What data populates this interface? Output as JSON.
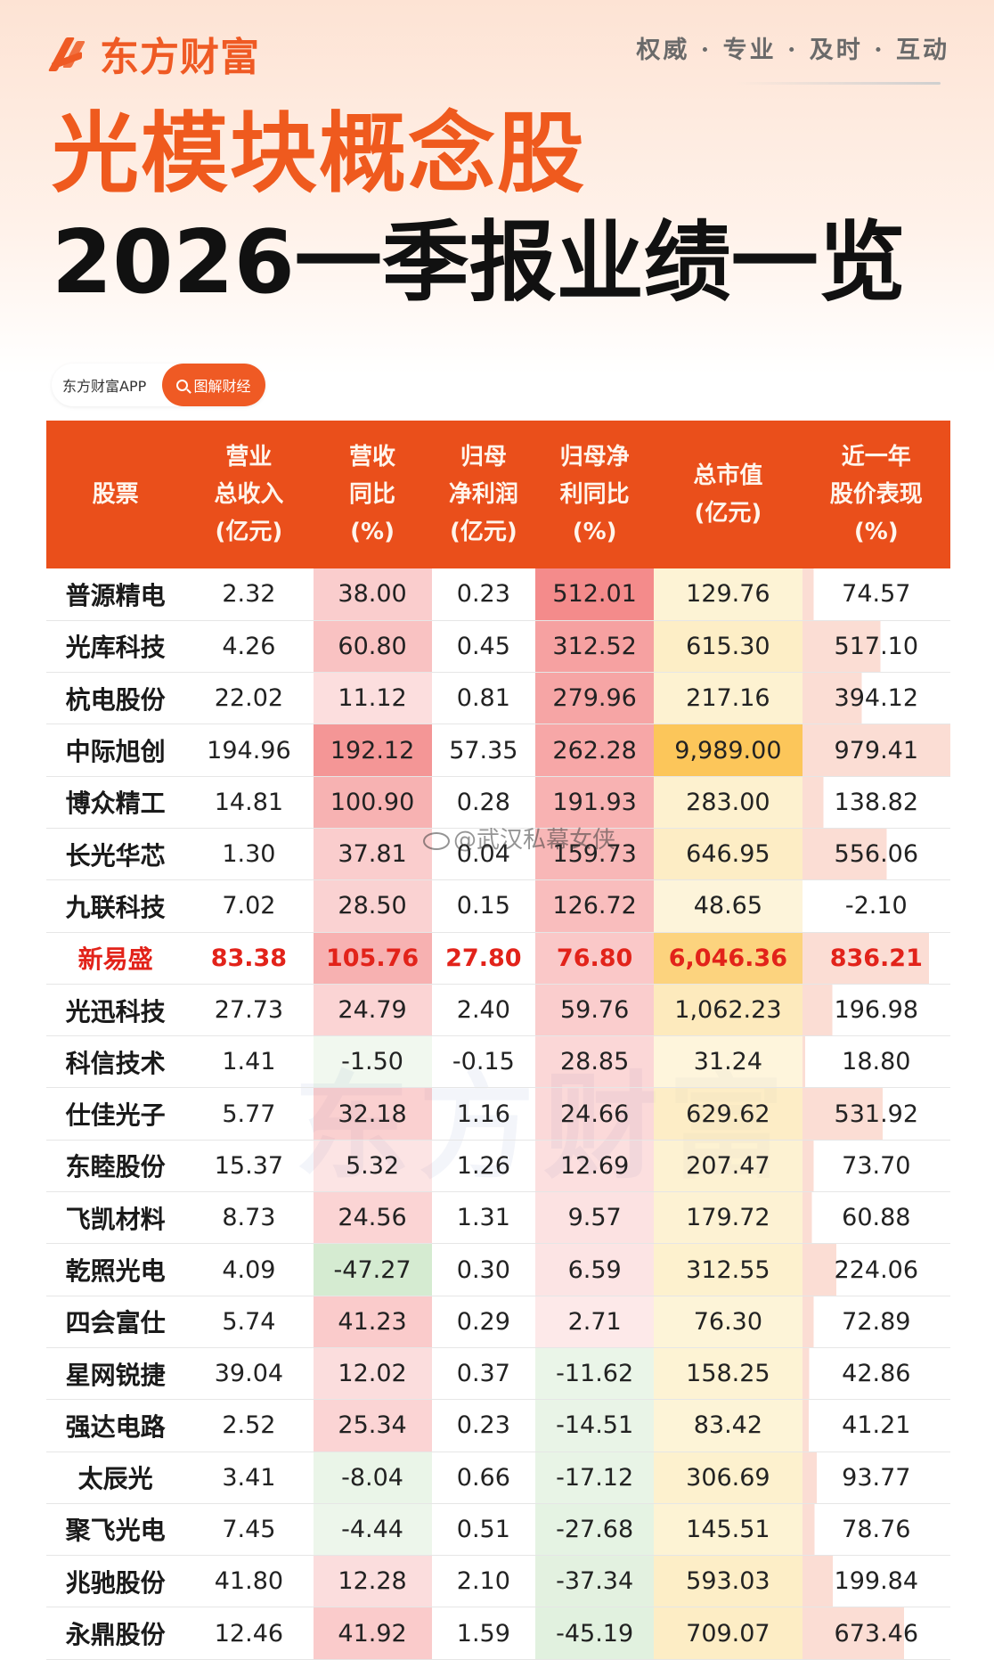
{
  "brand": {
    "name": "东方财富",
    "motto": "权威 · 专业 · 及时 · 互动"
  },
  "title": {
    "line1": "光模块概念股",
    "line2": "2026一季报业绩一览"
  },
  "badge": {
    "left": "东方财富APP",
    "right": "图解财经"
  },
  "watermark": "@武汉私幕女侠",
  "background_mark": "东方财富",
  "colors": {
    "brand": "#ef5a24",
    "header": "#ea4f1b",
    "highlight": "#e2231a"
  },
  "table": {
    "headers": [
      [
        "股票"
      ],
      [
        "营业",
        "总收入",
        "(亿元)"
      ],
      [
        "营收",
        "同比",
        "(%)"
      ],
      [
        "归母",
        "净利润",
        "(亿元)"
      ],
      [
        "归母净",
        "利同比",
        "(%)"
      ],
      [
        "总市值",
        "(亿元)"
      ],
      [
        "近一年",
        "股价表现",
        "(%)"
      ]
    ],
    "rows": [
      [
        "普源精电",
        "2.32",
        "38.00",
        "0.23",
        "512.01",
        "129.76",
        "74.57"
      ],
      [
        "光库科技",
        "4.26",
        "60.80",
        "0.45",
        "312.52",
        "615.30",
        "517.10"
      ],
      [
        "杭电股份",
        "22.02",
        "11.12",
        "0.81",
        "279.96",
        "217.16",
        "394.12"
      ],
      [
        "中际旭创",
        "194.96",
        "192.12",
        "57.35",
        "262.28",
        "9,989.00",
        "979.41"
      ],
      [
        "博众精工",
        "14.81",
        "100.90",
        "0.28",
        "191.93",
        "283.00",
        "138.82"
      ],
      [
        "长光华芯",
        "1.30",
        "37.81",
        "0.04",
        "159.73",
        "646.95",
        "556.06"
      ],
      [
        "九联科技",
        "7.02",
        "28.50",
        "0.15",
        "126.72",
        "48.65",
        "-2.10"
      ],
      [
        "新易盛",
        "83.38",
        "105.76",
        "27.80",
        "76.80",
        "6,046.36",
        "836.21"
      ],
      [
        "光迅科技",
        "27.73",
        "24.79",
        "2.40",
        "59.76",
        "1,062.23",
        "196.98"
      ],
      [
        "科信技术",
        "1.41",
        "-1.50",
        "-0.15",
        "28.85",
        "31.24",
        "18.80"
      ],
      [
        "仕佳光子",
        "5.77",
        "32.18",
        "1.16",
        "24.66",
        "629.62",
        "531.92"
      ],
      [
        "东睦股份",
        "15.37",
        "5.32",
        "1.26",
        "12.69",
        "207.47",
        "73.70"
      ],
      [
        "飞凯材料",
        "8.73",
        "24.56",
        "1.31",
        "9.57",
        "179.72",
        "60.88"
      ],
      [
        "乾照光电",
        "4.09",
        "-47.27",
        "0.30",
        "6.59",
        "312.55",
        "224.06"
      ],
      [
        "四会富仕",
        "5.74",
        "41.23",
        "0.29",
        "2.71",
        "76.30",
        "72.89"
      ],
      [
        "星网锐捷",
        "39.04",
        "12.02",
        "0.37",
        "-11.62",
        "158.25",
        "42.86"
      ],
      [
        "强达电路",
        "2.52",
        "25.34",
        "0.23",
        "-14.51",
        "83.42",
        "41.21"
      ],
      [
        "太辰光",
        "3.41",
        "-8.04",
        "0.66",
        "-17.12",
        "306.69",
        "93.77"
      ],
      [
        "聚飞光电",
        "7.45",
        "-4.44",
        "0.51",
        "-27.68",
        "145.51",
        "78.76"
      ],
      [
        "兆驰股份",
        "41.80",
        "12.28",
        "2.10",
        "-37.34",
        "593.03",
        "199.84"
      ],
      [
        "永鼎股份",
        "12.46",
        "41.92",
        "1.59",
        "-45.19",
        "709.07",
        "673.46"
      ]
    ],
    "highlight_row": "新易盛"
  }
}
